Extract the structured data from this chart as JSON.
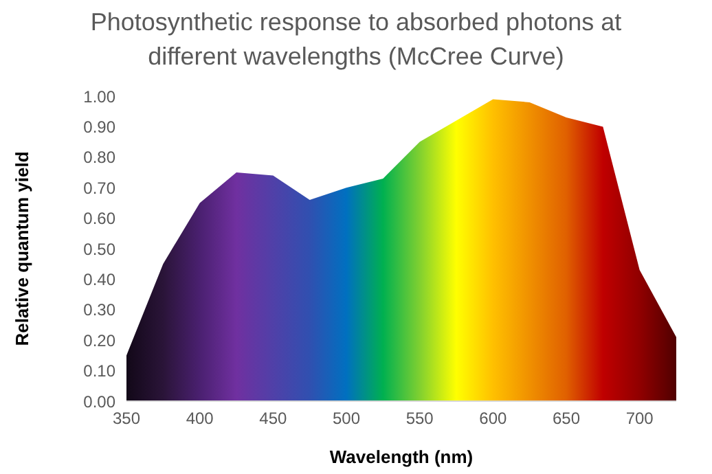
{
  "chart_data": {
    "type": "area",
    "title": "Photosynthetic response to absorbed photons at different wavelengths (McCree Curve)",
    "xlabel": "Wavelength (nm)",
    "ylabel": "Relative quantum yield",
    "x": [
      350,
      375,
      400,
      425,
      450,
      475,
      500,
      525,
      550,
      575,
      600,
      625,
      650,
      675,
      700,
      725
    ],
    "values": [
      0.15,
      0.45,
      0.65,
      0.75,
      0.74,
      0.66,
      0.7,
      0.73,
      0.85,
      0.92,
      0.99,
      0.98,
      0.93,
      0.9,
      0.43,
      0.21
    ],
    "colors": [
      "#120818",
      "#2a1438",
      "#4a2070",
      "#7030a0",
      "#5040a8",
      "#3050b0",
      "#0070c0",
      "#00b050",
      "#80d030",
      "#ffff00",
      "#ffc000",
      "#f09000",
      "#e06000",
      "#c00000",
      "#900000",
      "#500000"
    ],
    "xlim": [
      350,
      725
    ],
    "xticks": [
      350,
      400,
      450,
      500,
      550,
      600,
      650,
      700
    ],
    "ylim": [
      0,
      1
    ],
    "yticks": [
      {
        "value": 0,
        "label": "0.00"
      },
      {
        "value": 0.1,
        "label": "0.10"
      },
      {
        "value": 0.2,
        "label": "0.20"
      },
      {
        "value": 0.3,
        "label": "0.30"
      },
      {
        "value": 0.4,
        "label": "0.40"
      },
      {
        "value": 0.5,
        "label": "0.50"
      },
      {
        "value": 0.6,
        "label": "0.60"
      },
      {
        "value": 0.7,
        "label": "0.70"
      },
      {
        "value": 0.8,
        "label": "0.80"
      },
      {
        "value": 0.9,
        "label": "0.90"
      },
      {
        "value": 1,
        "label": "1.00"
      }
    ],
    "grid": false,
    "legend": false
  }
}
